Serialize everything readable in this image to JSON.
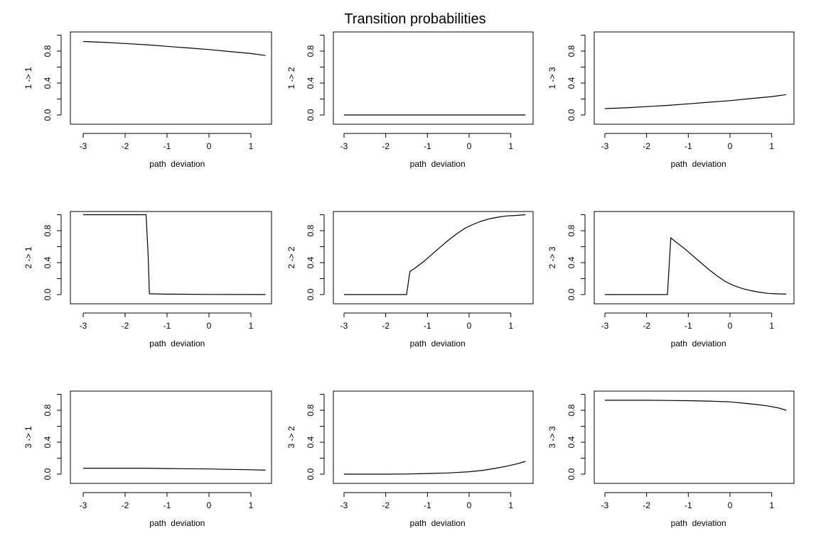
{
  "figure": {
    "title": "Transition probabilities"
  },
  "style": {
    "line_color": "#000000",
    "frame_color": "#000000",
    "background": "#ffffff"
  },
  "chart_data": [
    {
      "type": "line",
      "panel": "1 -> 1",
      "xlabel": "path  deviation",
      "ylabel": "1 -> 1",
      "xlim": [
        -3,
        1.35
      ],
      "ylim": [
        0,
        1
      ],
      "xticks": [
        -3,
        -2,
        -1,
        0,
        1
      ],
      "yticks": [
        0.0,
        0.4,
        0.8
      ],
      "x": [
        -3,
        -2.5,
        -2,
        -1.5,
        -1,
        -0.5,
        0,
        0.5,
        1,
        1.35
      ],
      "y": [
        0.92,
        0.91,
        0.895,
        0.88,
        0.86,
        0.84,
        0.82,
        0.795,
        0.77,
        0.745
      ]
    },
    {
      "type": "line",
      "panel": "1 -> 2",
      "xlabel": "path  deviation",
      "ylabel": "1 -> 2",
      "xlim": [
        -3,
        1.35
      ],
      "ylim": [
        0,
        1
      ],
      "xticks": [
        -3,
        -2,
        -1,
        0,
        1
      ],
      "yticks": [
        0.0,
        0.4,
        0.8
      ],
      "x": [
        -3,
        1.35
      ],
      "y": [
        0,
        0
      ]
    },
    {
      "type": "line",
      "panel": "1 -> 3",
      "xlabel": "path  deviation",
      "ylabel": "1 -> 3",
      "xlim": [
        -3,
        1.35
      ],
      "ylim": [
        0,
        1
      ],
      "xticks": [
        -3,
        -2,
        -1,
        0,
        1
      ],
      "yticks": [
        0.0,
        0.4,
        0.8
      ],
      "x": [
        -3,
        -2.5,
        -2,
        -1.5,
        -1,
        -0.5,
        0,
        0.5,
        1,
        1.35
      ],
      "y": [
        0.08,
        0.09,
        0.105,
        0.12,
        0.14,
        0.16,
        0.18,
        0.205,
        0.23,
        0.255
      ]
    },
    {
      "type": "line",
      "panel": "2 -> 1",
      "xlabel": "path  deviation",
      "ylabel": "2 -> 1",
      "xlim": [
        -3,
        1.35
      ],
      "ylim": [
        0,
        1
      ],
      "xticks": [
        -3,
        -2,
        -1,
        0,
        1
      ],
      "yticks": [
        0.0,
        0.4,
        0.8
      ],
      "x": [
        -3,
        -1.5,
        -1.45,
        -1.42,
        -1,
        0,
        1,
        1.35
      ],
      "y": [
        1.0,
        1.0,
        0.5,
        0.01,
        0.005,
        0.002,
        0.001,
        0.0
      ]
    },
    {
      "type": "line",
      "panel": "2 -> 2",
      "xlabel": "path  deviation",
      "ylabel": "2 -> 2",
      "xlim": [
        -3,
        1.35
      ],
      "ylim": [
        0,
        1
      ],
      "xticks": [
        -3,
        -2,
        -1,
        0,
        1
      ],
      "yticks": [
        0.0,
        0.4,
        0.8
      ],
      "x": [
        -3,
        -1.5,
        -1.42,
        -1.3,
        -1.1,
        -0.9,
        -0.7,
        -0.5,
        -0.3,
        -0.1,
        0.1,
        0.3,
        0.5,
        0.7,
        0.9,
        1.1,
        1.35
      ],
      "y": [
        0.0,
        0.0,
        0.29,
        0.33,
        0.41,
        0.5,
        0.59,
        0.68,
        0.76,
        0.83,
        0.88,
        0.92,
        0.95,
        0.97,
        0.985,
        0.99,
        1.0
      ]
    },
    {
      "type": "line",
      "panel": "2 -> 3",
      "xlabel": "path  deviation",
      "ylabel": "2 -> 3",
      "xlim": [
        -3,
        1.35
      ],
      "ylim": [
        0,
        1
      ],
      "xticks": [
        -3,
        -2,
        -1,
        0,
        1
      ],
      "yticks": [
        0.0,
        0.4,
        0.8
      ],
      "x": [
        -3,
        -1.5,
        -1.42,
        -1.3,
        -1.1,
        -0.9,
        -0.7,
        -0.5,
        -0.3,
        -0.1,
        0.1,
        0.3,
        0.5,
        0.7,
        0.9,
        1.1,
        1.35
      ],
      "y": [
        0.0,
        0.0,
        0.71,
        0.66,
        0.58,
        0.49,
        0.4,
        0.31,
        0.23,
        0.16,
        0.11,
        0.075,
        0.05,
        0.03,
        0.015,
        0.01,
        0.005
      ]
    },
    {
      "type": "line",
      "panel": "3 -> 1",
      "xlabel": "path  deviation",
      "ylabel": "3 -> 1",
      "xlim": [
        -3,
        1.35
      ],
      "ylim": [
        0,
        1
      ],
      "xticks": [
        -3,
        -2,
        -1,
        0,
        1
      ],
      "yticks": [
        0.0,
        0.4,
        0.8
      ],
      "x": [
        -3,
        -2,
        -1.5,
        -1,
        0,
        0.5,
        1,
        1.35
      ],
      "y": [
        0.075,
        0.075,
        0.075,
        0.07,
        0.065,
        0.06,
        0.055,
        0.05
      ]
    },
    {
      "type": "line",
      "panel": "3 -> 2",
      "xlabel": "path  deviation",
      "ylabel": "3 -> 2",
      "xlim": [
        -3,
        1.35
      ],
      "ylim": [
        0,
        1
      ],
      "xticks": [
        -3,
        -2,
        -1,
        0,
        1
      ],
      "yticks": [
        0.0,
        0.4,
        0.8
      ],
      "x": [
        -3,
        -2,
        -1.5,
        -1,
        -0.5,
        0,
        0.3,
        0.6,
        0.9,
        1.15,
        1.35
      ],
      "y": [
        0.0,
        0.0,
        0.002,
        0.008,
        0.015,
        0.03,
        0.045,
        0.07,
        0.1,
        0.13,
        0.16
      ]
    },
    {
      "type": "line",
      "panel": "3 -> 3",
      "xlabel": "path  deviation",
      "ylabel": "3 -> 3",
      "xlim": [
        -3,
        1.35
      ],
      "ylim": [
        0,
        1
      ],
      "xticks": [
        -3,
        -2,
        -1,
        0,
        1
      ],
      "yticks": [
        0.0,
        0.4,
        0.8
      ],
      "x": [
        -3,
        -2,
        -1.5,
        -1,
        -0.5,
        0,
        0.3,
        0.6,
        0.9,
        1.15,
        1.35
      ],
      "y": [
        0.925,
        0.925,
        0.923,
        0.92,
        0.915,
        0.905,
        0.89,
        0.875,
        0.855,
        0.83,
        0.8
      ]
    }
  ]
}
